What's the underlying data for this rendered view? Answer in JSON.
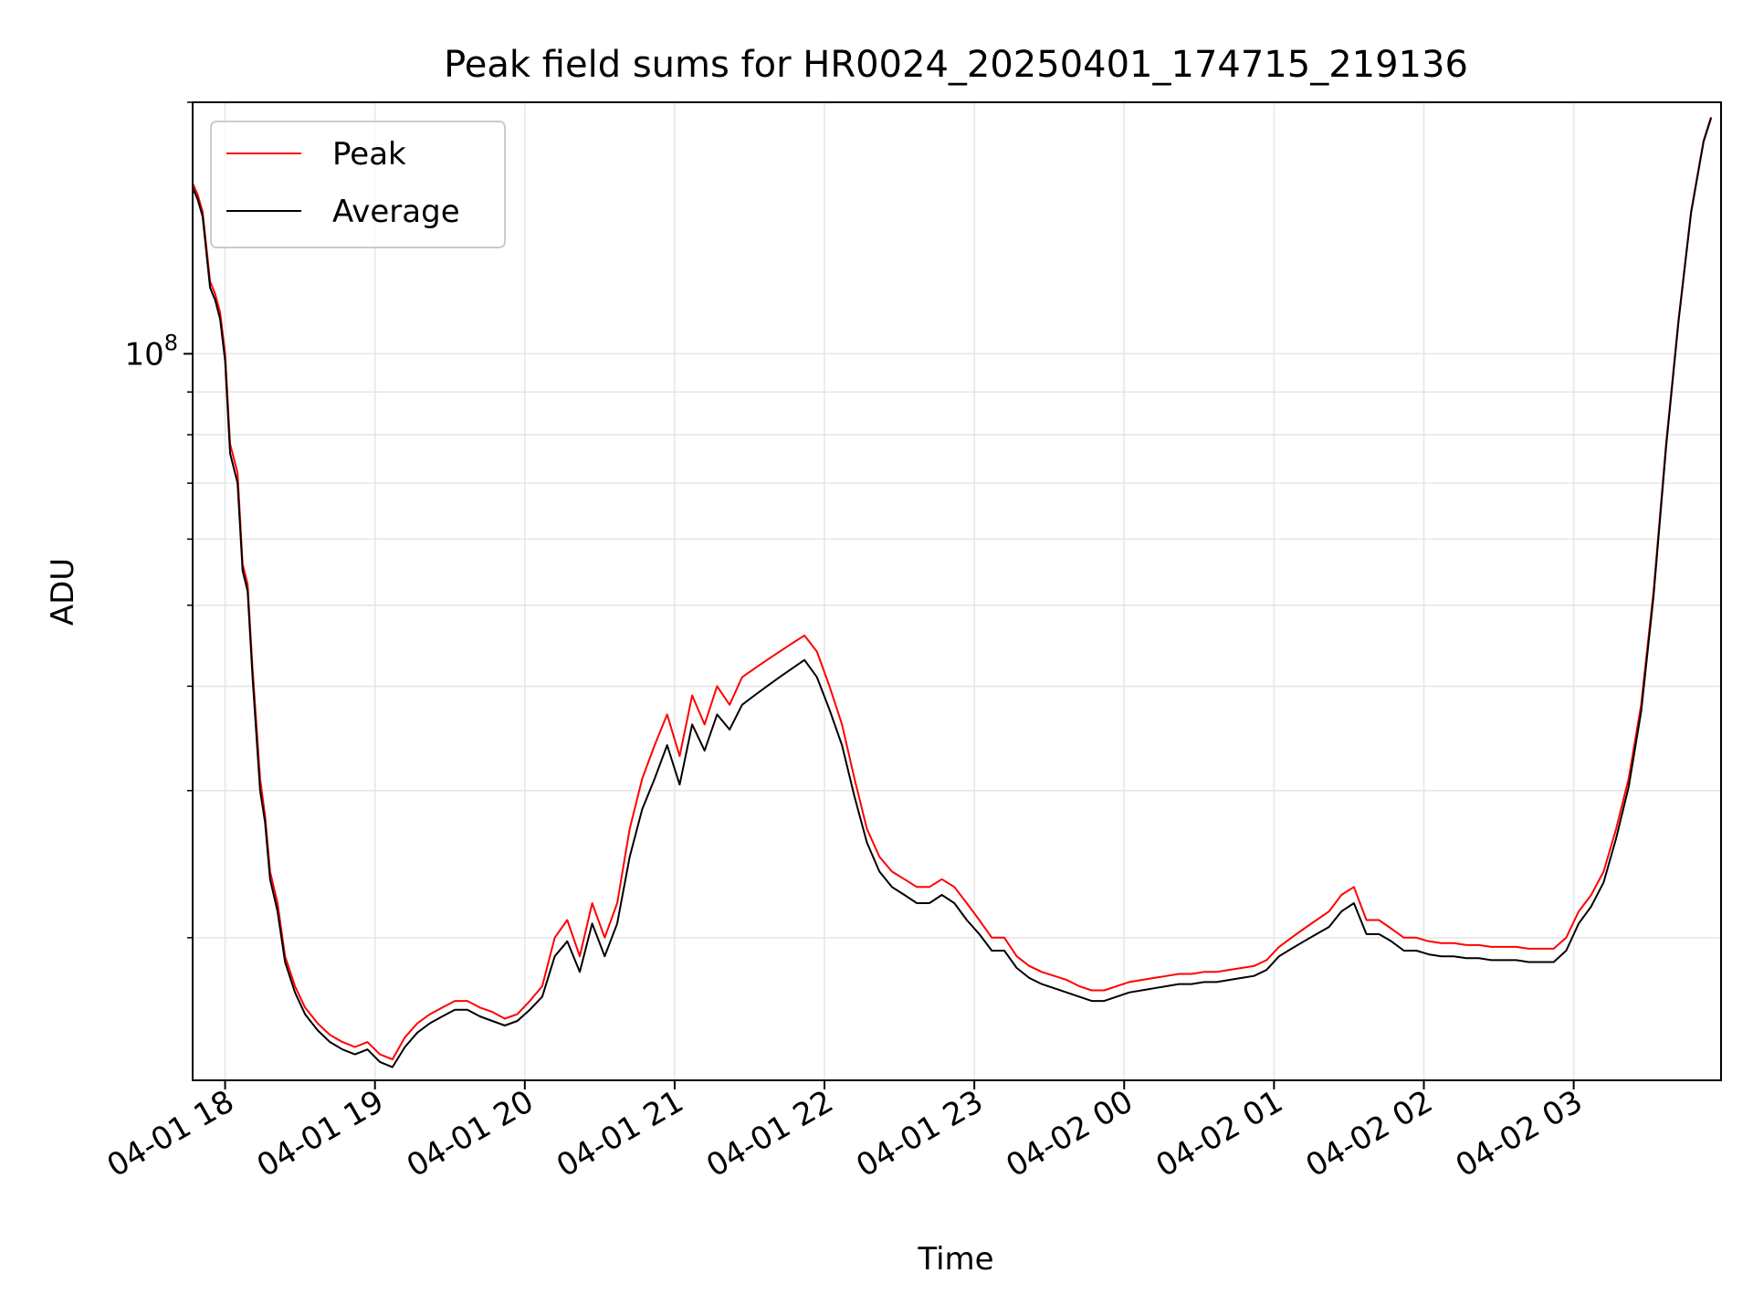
{
  "chart_data": {
    "type": "line",
    "title": "Peak field sums for HR0024_20250401_174715_219136",
    "xlabel": "Time",
    "ylabel": "ADU",
    "y_scale": "log",
    "ylim": [
      13500000,
      200000000
    ],
    "xlim": [
      "2025-04-01 17:47",
      "2025-04-02 03:59"
    ],
    "grid": true,
    "legend_position": "upper-left",
    "x_ticks": [
      {
        "value": "2025-04-01 18:00",
        "label": "04-01 18"
      },
      {
        "value": "2025-04-01 19:00",
        "label": "04-01 19"
      },
      {
        "value": "2025-04-01 20:00",
        "label": "04-01 20"
      },
      {
        "value": "2025-04-01 21:00",
        "label": "04-01 21"
      },
      {
        "value": "2025-04-01 22:00",
        "label": "04-01 22"
      },
      {
        "value": "2025-04-01 23:00",
        "label": "04-01 23"
      },
      {
        "value": "2025-04-02 00:00",
        "label": "04-02 00"
      },
      {
        "value": "2025-04-02 01:00",
        "label": "04-02 01"
      },
      {
        "value": "2025-04-02 02:00",
        "label": "04-02 02"
      },
      {
        "value": "2025-04-02 03:00",
        "label": "04-02 03"
      }
    ],
    "y_ticks": [
      {
        "value": 100000000,
        "base": "10",
        "exponent": "8"
      }
    ],
    "series": [
      {
        "name": "Peak",
        "color": "#ff0000",
        "x": [
          "2025-04-01 17:47",
          "2025-04-01 17:49",
          "2025-04-01 17:51",
          "2025-04-01 17:54",
          "2025-04-01 17:56",
          "2025-04-01 17:58",
          "2025-04-01 18:00",
          "2025-04-01 18:02",
          "2025-04-01 18:05",
          "2025-04-01 18:07",
          "2025-04-01 18:09",
          "2025-04-01 18:11",
          "2025-04-01 18:14",
          "2025-04-01 18:16",
          "2025-04-01 18:18",
          "2025-04-01 18:21",
          "2025-04-01 18:24",
          "2025-04-01 18:28",
          "2025-04-01 18:32",
          "2025-04-01 18:37",
          "2025-04-01 18:42",
          "2025-04-01 18:47",
          "2025-04-01 18:52",
          "2025-04-01 18:57",
          "2025-04-01 19:02",
          "2025-04-01 19:07",
          "2025-04-01 19:12",
          "2025-04-01 19:17",
          "2025-04-01 19:22",
          "2025-04-01 19:27",
          "2025-04-01 19:32",
          "2025-04-01 19:37",
          "2025-04-01 19:42",
          "2025-04-01 19:47",
          "2025-04-01 19:52",
          "2025-04-01 19:57",
          "2025-04-01 20:02",
          "2025-04-01 20:07",
          "2025-04-01 20:12",
          "2025-04-01 20:17",
          "2025-04-01 20:22",
          "2025-04-01 20:27",
          "2025-04-01 20:32",
          "2025-04-01 20:37",
          "2025-04-01 20:42",
          "2025-04-01 20:47",
          "2025-04-01 20:52",
          "2025-04-01 20:57",
          "2025-04-01 21:02",
          "2025-04-01 21:07",
          "2025-04-01 21:12",
          "2025-04-01 21:17",
          "2025-04-01 21:22",
          "2025-04-01 21:27",
          "2025-04-01 21:32",
          "2025-04-01 21:37",
          "2025-04-01 21:42",
          "2025-04-01 21:47",
          "2025-04-01 21:52",
          "2025-04-01 21:57",
          "2025-04-01 22:02",
          "2025-04-01 22:07",
          "2025-04-01 22:12",
          "2025-04-01 22:17",
          "2025-04-01 22:22",
          "2025-04-01 22:27",
          "2025-04-01 22:32",
          "2025-04-01 22:37",
          "2025-04-01 22:42",
          "2025-04-01 22:47",
          "2025-04-01 22:52",
          "2025-04-01 22:57",
          "2025-04-01 23:02",
          "2025-04-01 23:07",
          "2025-04-01 23:12",
          "2025-04-01 23:17",
          "2025-04-01 23:22",
          "2025-04-01 23:27",
          "2025-04-01 23:32",
          "2025-04-01 23:37",
          "2025-04-01 23:42",
          "2025-04-01 23:47",
          "2025-04-01 23:52",
          "2025-04-01 23:57",
          "2025-04-02 00:02",
          "2025-04-02 00:07",
          "2025-04-02 00:12",
          "2025-04-02 00:17",
          "2025-04-02 00:22",
          "2025-04-02 00:27",
          "2025-04-02 00:32",
          "2025-04-02 00:37",
          "2025-04-02 00:42",
          "2025-04-02 00:47",
          "2025-04-02 00:52",
          "2025-04-02 00:57",
          "2025-04-02 01:02",
          "2025-04-02 01:07",
          "2025-04-02 01:12",
          "2025-04-02 01:17",
          "2025-04-02 01:22",
          "2025-04-02 01:27",
          "2025-04-02 01:32",
          "2025-04-02 01:37",
          "2025-04-02 01:42",
          "2025-04-02 01:47",
          "2025-04-02 01:52",
          "2025-04-02 01:57",
          "2025-04-02 02:02",
          "2025-04-02 02:07",
          "2025-04-02 02:12",
          "2025-04-02 02:17",
          "2025-04-02 02:22",
          "2025-04-02 02:27",
          "2025-04-02 02:32",
          "2025-04-02 02:37",
          "2025-04-02 02:42",
          "2025-04-02 02:47",
          "2025-04-02 02:52",
          "2025-04-02 02:57",
          "2025-04-02 03:02",
          "2025-04-02 03:07",
          "2025-04-02 03:12",
          "2025-04-02 03:17",
          "2025-04-02 03:22",
          "2025-04-02 03:27",
          "2025-04-02 03:32",
          "2025-04-02 03:37",
          "2025-04-02 03:42",
          "2025-04-02 03:47",
          "2025-04-02 03:52",
          "2025-04-02 03:55"
        ],
        "values": [
          160000000,
          155000000,
          148000000,
          122000000,
          118000000,
          112000000,
          100000000,
          78000000,
          72000000,
          56000000,
          53000000,
          42000000,
          31000000,
          28000000,
          24000000,
          22000000,
          19000000,
          17500000,
          16500000,
          15800000,
          15300000,
          15000000,
          14800000,
          15000000,
          14500000,
          14300000,
          15200000,
          15800000,
          16200000,
          16500000,
          16800000,
          16800000,
          16500000,
          16300000,
          16000000,
          16200000,
          16800000,
          17500000,
          20000000,
          21000000,
          19000000,
          22000000,
          20000000,
          22000000,
          27000000,
          31000000,
          34000000,
          37000000,
          33000000,
          39000000,
          36000000,
          40000000,
          38000000,
          41000000,
          42000000,
          43000000,
          44000000,
          45000000,
          46000000,
          44000000,
          40000000,
          36000000,
          31000000,
          27000000,
          25000000,
          24000000,
          23500000,
          23000000,
          23000000,
          23500000,
          23000000,
          22000000,
          21000000,
          20000000,
          20000000,
          19000000,
          18500000,
          18200000,
          18000000,
          17800000,
          17500000,
          17300000,
          17300000,
          17500000,
          17700000,
          17800000,
          17900000,
          18000000,
          18100000,
          18100000,
          18200000,
          18200000,
          18300000,
          18400000,
          18500000,
          18800000,
          19500000,
          20000000,
          20500000,
          21000000,
          21500000,
          22500000,
          23000000,
          21000000,
          21000000,
          20500000,
          20000000,
          20000000,
          19800000,
          19700000,
          19700000,
          19600000,
          19600000,
          19500000,
          19500000,
          19500000,
          19400000,
          19400000,
          19400000,
          20000000,
          21500000,
          22500000,
          24000000,
          27000000,
          31000000,
          38000000,
          52000000,
          78000000,
          110000000,
          148000000,
          180000000,
          192000000
        ]
      },
      {
        "name": "Average",
        "color": "#000000",
        "x": [
          "2025-04-01 17:47",
          "2025-04-01 17:49",
          "2025-04-01 17:51",
          "2025-04-01 17:54",
          "2025-04-01 17:56",
          "2025-04-01 17:58",
          "2025-04-01 18:00",
          "2025-04-01 18:02",
          "2025-04-01 18:05",
          "2025-04-01 18:07",
          "2025-04-01 18:09",
          "2025-04-01 18:11",
          "2025-04-01 18:14",
          "2025-04-01 18:16",
          "2025-04-01 18:18",
          "2025-04-01 18:21",
          "2025-04-01 18:24",
          "2025-04-01 18:28",
          "2025-04-01 18:32",
          "2025-04-01 18:37",
          "2025-04-01 18:42",
          "2025-04-01 18:47",
          "2025-04-01 18:52",
          "2025-04-01 18:57",
          "2025-04-01 19:02",
          "2025-04-01 19:07",
          "2025-04-01 19:12",
          "2025-04-01 19:17",
          "2025-04-01 19:22",
          "2025-04-01 19:27",
          "2025-04-01 19:32",
          "2025-04-01 19:37",
          "2025-04-01 19:42",
          "2025-04-01 19:47",
          "2025-04-01 19:52",
          "2025-04-01 19:57",
          "2025-04-01 20:02",
          "2025-04-01 20:07",
          "2025-04-01 20:12",
          "2025-04-01 20:17",
          "2025-04-01 20:22",
          "2025-04-01 20:27",
          "2025-04-01 20:32",
          "2025-04-01 20:37",
          "2025-04-01 20:42",
          "2025-04-01 20:47",
          "2025-04-01 20:52",
          "2025-04-01 20:57",
          "2025-04-01 21:02",
          "2025-04-01 21:07",
          "2025-04-01 21:12",
          "2025-04-01 21:17",
          "2025-04-01 21:22",
          "2025-04-01 21:27",
          "2025-04-01 21:32",
          "2025-04-01 21:37",
          "2025-04-01 21:42",
          "2025-04-01 21:47",
          "2025-04-01 21:52",
          "2025-04-01 21:57",
          "2025-04-01 22:02",
          "2025-04-01 22:07",
          "2025-04-01 22:12",
          "2025-04-01 22:17",
          "2025-04-01 22:22",
          "2025-04-01 22:27",
          "2025-04-01 22:32",
          "2025-04-01 22:37",
          "2025-04-01 22:42",
          "2025-04-01 22:47",
          "2025-04-01 22:52",
          "2025-04-01 22:57",
          "2025-04-01 23:02",
          "2025-04-01 23:07",
          "2025-04-01 23:12",
          "2025-04-01 23:17",
          "2025-04-01 23:22",
          "2025-04-01 23:27",
          "2025-04-01 23:32",
          "2025-04-01 23:37",
          "2025-04-01 23:42",
          "2025-04-01 23:47",
          "2025-04-01 23:52",
          "2025-04-01 23:57",
          "2025-04-02 00:02",
          "2025-04-02 00:07",
          "2025-04-02 00:12",
          "2025-04-02 00:17",
          "2025-04-02 00:22",
          "2025-04-02 00:27",
          "2025-04-02 00:32",
          "2025-04-02 00:37",
          "2025-04-02 00:42",
          "2025-04-02 00:47",
          "2025-04-02 00:52",
          "2025-04-02 00:57",
          "2025-04-02 01:02",
          "2025-04-02 01:07",
          "2025-04-02 01:12",
          "2025-04-02 01:17",
          "2025-04-02 01:22",
          "2025-04-02 01:27",
          "2025-04-02 01:32",
          "2025-04-02 01:37",
          "2025-04-02 01:42",
          "2025-04-02 01:47",
          "2025-04-02 01:52",
          "2025-04-02 01:57",
          "2025-04-02 02:02",
          "2025-04-02 02:07",
          "2025-04-02 02:12",
          "2025-04-02 02:17",
          "2025-04-02 02:22",
          "2025-04-02 02:27",
          "2025-04-02 02:32",
          "2025-04-02 02:37",
          "2025-04-02 02:42",
          "2025-04-02 02:47",
          "2025-04-02 02:52",
          "2025-04-02 02:57",
          "2025-04-02 03:02",
          "2025-04-02 03:07",
          "2025-04-02 03:12",
          "2025-04-02 03:17",
          "2025-04-02 03:22",
          "2025-04-02 03:27",
          "2025-04-02 03:32",
          "2025-04-02 03:37",
          "2025-04-02 03:42",
          "2025-04-02 03:47",
          "2025-04-02 03:52",
          "2025-04-02 03:55"
        ],
        "values": [
          158000000,
          153000000,
          146000000,
          120000000,
          116000000,
          110000000,
          98000000,
          76000000,
          70000000,
          55000000,
          52000000,
          41000000,
          30000000,
          27500000,
          23500000,
          21500000,
          18700000,
          17200000,
          16200000,
          15500000,
          15000000,
          14700000,
          14500000,
          14700000,
          14200000,
          14000000,
          14800000,
          15400000,
          15800000,
          16100000,
          16400000,
          16400000,
          16100000,
          15900000,
          15700000,
          15900000,
          16400000,
          17000000,
          19000000,
          19800000,
          18200000,
          20800000,
          19000000,
          20800000,
          25000000,
          28500000,
          31000000,
          34000000,
          30500000,
          36000000,
          33500000,
          37000000,
          35500000,
          38000000,
          39000000,
          40000000,
          41000000,
          42000000,
          43000000,
          41000000,
          37500000,
          34000000,
          29500000,
          26000000,
          24000000,
          23000000,
          22500000,
          22000000,
          22000000,
          22500000,
          22000000,
          21000000,
          20200000,
          19300000,
          19300000,
          18400000,
          17900000,
          17600000,
          17400000,
          17200000,
          17000000,
          16800000,
          16800000,
          17000000,
          17200000,
          17300000,
          17400000,
          17500000,
          17600000,
          17600000,
          17700000,
          17700000,
          17800000,
          17900000,
          18000000,
          18300000,
          19000000,
          19400000,
          19800000,
          20200000,
          20600000,
          21500000,
          22000000,
          20200000,
          20200000,
          19800000,
          19300000,
          19300000,
          19100000,
          19000000,
          19000000,
          18900000,
          18900000,
          18800000,
          18800000,
          18800000,
          18700000,
          18700000,
          18700000,
          19300000,
          20800000,
          21800000,
          23300000,
          26300000,
          30300000,
          37300000,
          51300000,
          77300000,
          109500000,
          147500000,
          179500000,
          191500000
        ]
      }
    ]
  }
}
